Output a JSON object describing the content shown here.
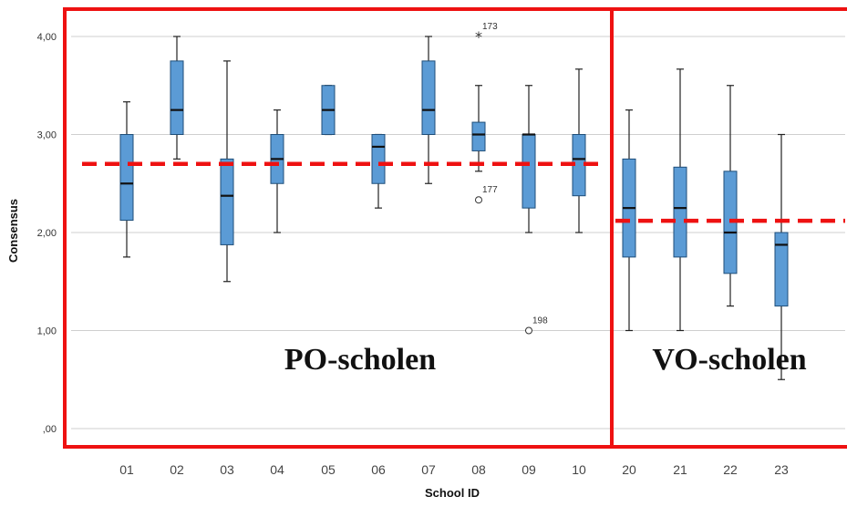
{
  "chart_data": {
    "type": "boxplot",
    "xlabel": "School ID",
    "ylabel": "Consensus",
    "ylim": [
      0,
      4.2
    ],
    "yticks": [
      0,
      1,
      2,
      3,
      4
    ],
    "ytick_labels": [
      ",00",
      "1,00",
      "2,00",
      "3,00",
      "4,00"
    ],
    "grid": "horizontal",
    "categories": [
      "01",
      "02",
      "03",
      "04",
      "05",
      "06",
      "07",
      "08",
      "09",
      "10",
      "20",
      "21",
      "22",
      "23"
    ],
    "boxes": [
      {
        "id": "01",
        "min": 1.75,
        "q1": 2.125,
        "median": 2.5,
        "q3": 3.0,
        "max": 3.333
      },
      {
        "id": "02",
        "min": 2.75,
        "q1": 3.0,
        "median": 3.25,
        "q3": 3.75,
        "max": 4.0
      },
      {
        "id": "03",
        "min": 1.5,
        "q1": 1.875,
        "median": 2.375,
        "q3": 2.75,
        "max": 3.75
      },
      {
        "id": "04",
        "min": 2.0,
        "q1": 2.5,
        "median": 2.75,
        "q3": 3.0,
        "max": 3.25
      },
      {
        "id": "05",
        "min": 3.0,
        "q1": 3.0,
        "median": 3.25,
        "q3": 3.5,
        "max": 3.5
      },
      {
        "id": "06",
        "min": 2.25,
        "q1": 2.5,
        "median": 2.875,
        "q3": 3.0,
        "max": 3.0
      },
      {
        "id": "07",
        "min": 2.5,
        "q1": 3.0,
        "median": 3.25,
        "q3": 3.75,
        "max": 4.0
      },
      {
        "id": "08",
        "min": 2.625,
        "q1": 2.833,
        "median": 3.0,
        "q3": 3.125,
        "max": 3.5
      },
      {
        "id": "09",
        "min": 2.0,
        "q1": 2.25,
        "median": 3.0,
        "q3": 3.0,
        "max": 3.5
      },
      {
        "id": "10",
        "min": 2.0,
        "q1": 2.375,
        "median": 2.75,
        "q3": 3.0,
        "max": 3.667
      },
      {
        "id": "20",
        "min": 1.0,
        "q1": 1.75,
        "median": 2.25,
        "q3": 2.75,
        "max": 3.25
      },
      {
        "id": "21",
        "min": 1.0,
        "q1": 1.75,
        "median": 2.25,
        "q3": 2.667,
        "max": 3.667
      },
      {
        "id": "22",
        "min": 1.25,
        "q1": 1.583,
        "median": 2.0,
        "q3": 2.625,
        "max": 3.5
      },
      {
        "id": "23",
        "min": 0.5,
        "q1": 1.25,
        "median": 1.875,
        "q3": 2.0,
        "max": 3.0
      }
    ],
    "outliers": [
      {
        "category": "08",
        "value": 4.0,
        "marker": "star",
        "label": "173"
      },
      {
        "category": "08",
        "value": 2.333,
        "marker": "circle",
        "label": "177"
      },
      {
        "category": "09",
        "value": 1.0,
        "marker": "circle",
        "label": "198"
      }
    ],
    "groups": [
      {
        "label": "PO-scholen",
        "categories": [
          "01",
          "02",
          "03",
          "04",
          "05",
          "06",
          "07",
          "08",
          "09",
          "10"
        ],
        "mean_line": 2.7
      },
      {
        "label": "VO-scholen",
        "categories": [
          "20",
          "21",
          "22",
          "23"
        ],
        "mean_line": 2.12
      }
    ],
    "colors": {
      "box_fill": "#5b9bd5",
      "box_stroke": "#1f4e79",
      "group_border": "#ee1111",
      "mean_line": "#ee1111",
      "grid": "#cfcfcf"
    }
  }
}
